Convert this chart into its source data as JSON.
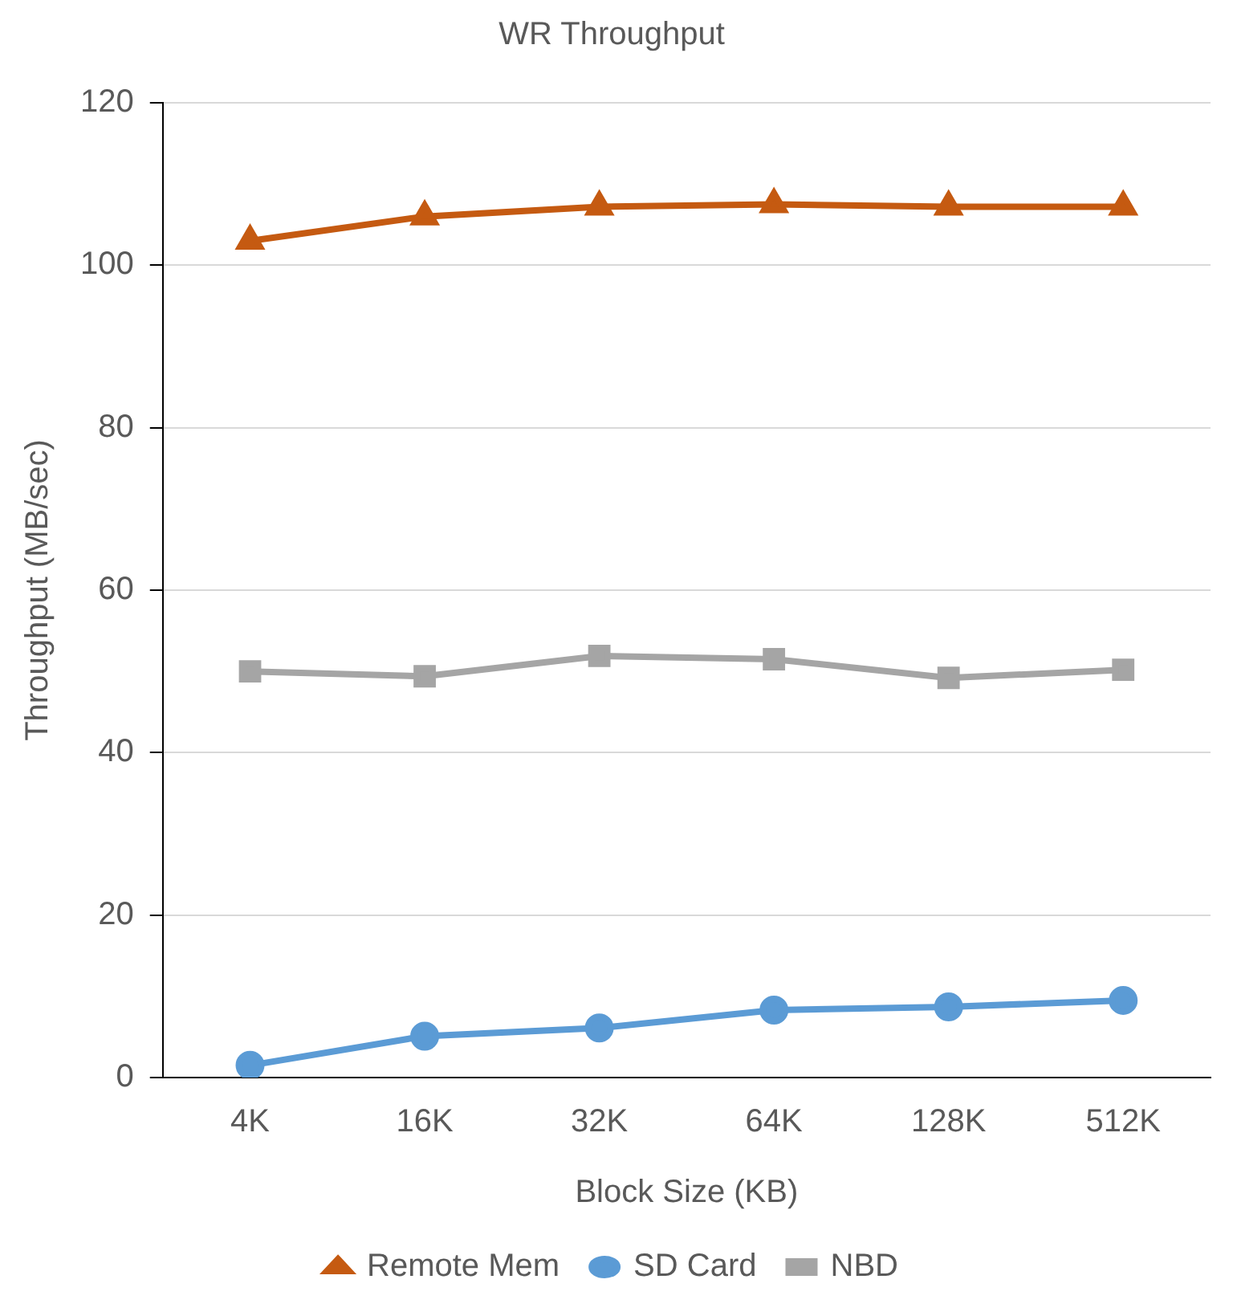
{
  "chart_data": {
    "type": "line",
    "title": "WR Throughput",
    "xlabel": "Block Size (KB)",
    "ylabel": "Throughput (MB/sec)",
    "categories": [
      "4K",
      "16K",
      "32K",
      "64K",
      "128K",
      "512K"
    ],
    "series": [
      {
        "name": "Remote Mem",
        "color": "#c55a11",
        "marker": "triangle",
        "values": [
          103.0,
          106.0,
          107.2,
          107.5,
          107.2,
          107.2
        ]
      },
      {
        "name": "SD Card",
        "color": "#5b9bd5",
        "marker": "circle",
        "values": [
          1.5,
          5.1,
          6.1,
          8.3,
          8.7,
          9.5
        ]
      },
      {
        "name": "NBD",
        "color": "#a5a5a5",
        "marker": "square",
        "values": [
          50.0,
          49.4,
          51.9,
          51.5,
          49.2,
          50.2
        ]
      }
    ],
    "ylim": [
      0,
      120
    ],
    "yticks": [
      0,
      20,
      40,
      60,
      80,
      100,
      120
    ],
    "grid": "y",
    "legend": "bottom"
  }
}
